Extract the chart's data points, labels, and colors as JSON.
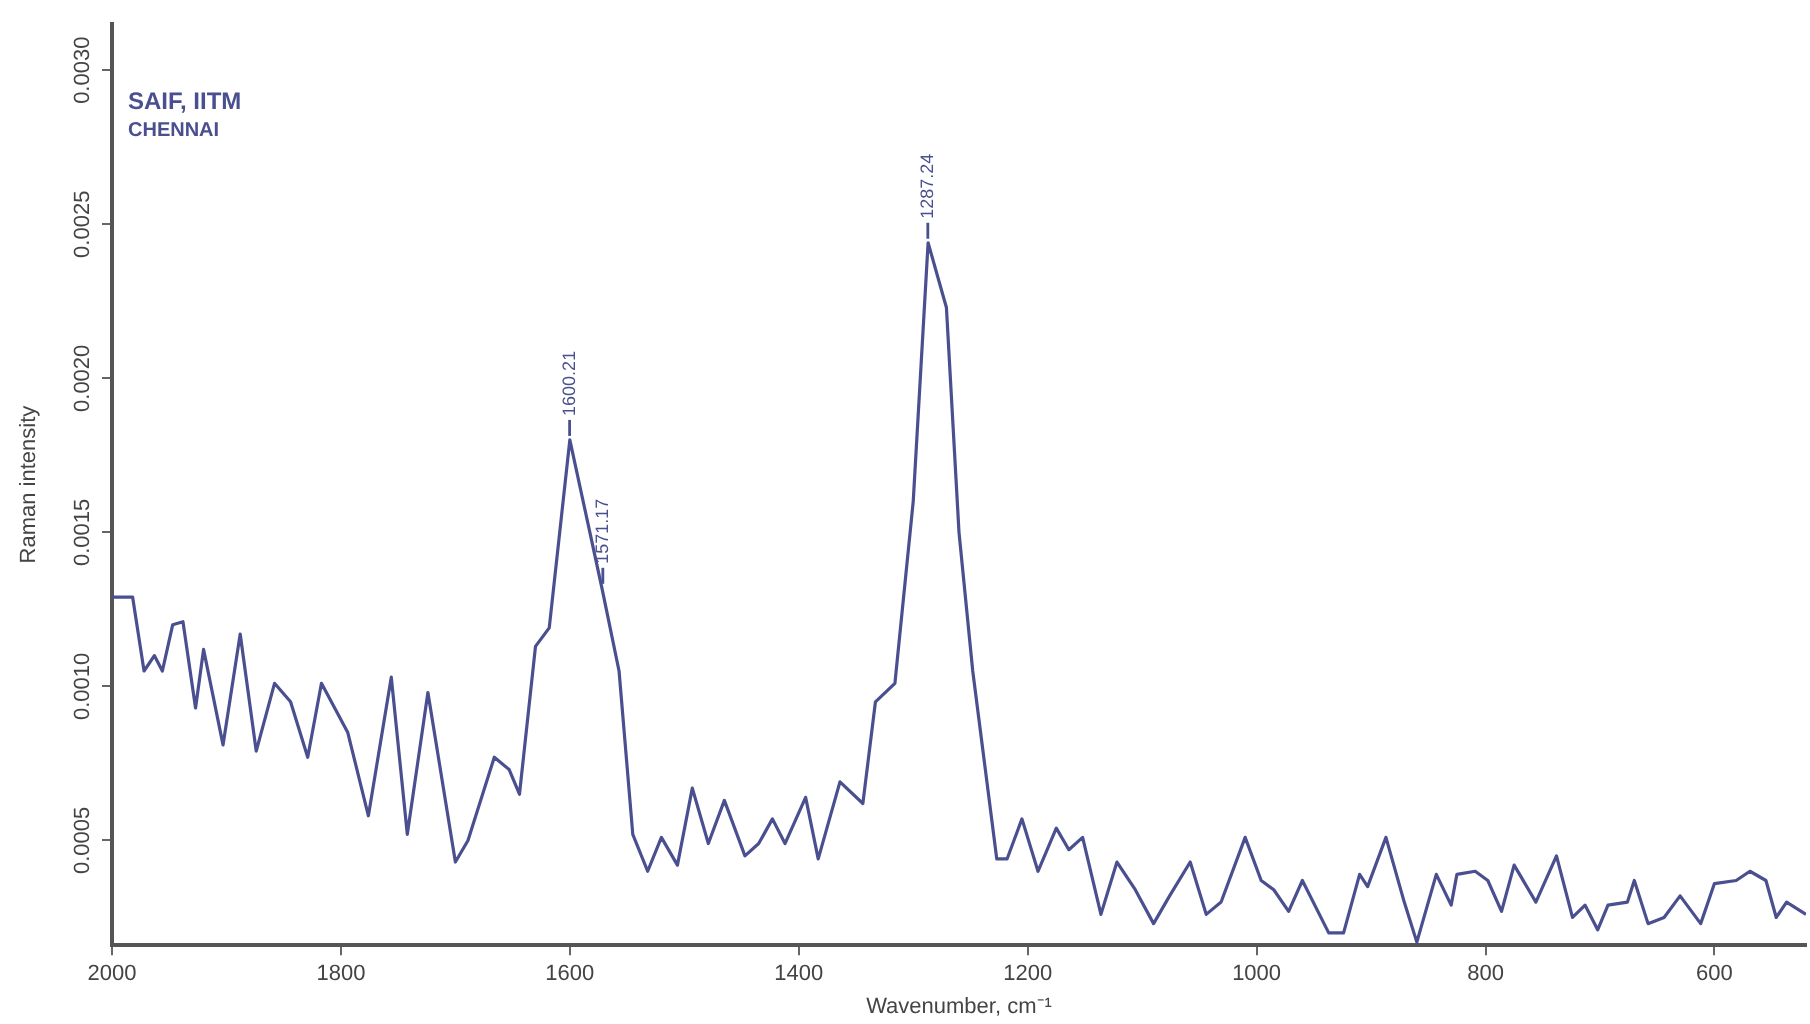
{
  "chart_data": {
    "type": "line",
    "xlabel": "Wavenumber, cm⁻¹",
    "ylabel": "Raman intensity",
    "x": [
      2000,
      1982,
      1972,
      1963,
      1956,
      1947,
      1938,
      1927,
      1920,
      1903,
      1888,
      1874,
      1858,
      1844,
      1829,
      1817,
      1794,
      1776,
      1756,
      1742,
      1724,
      1700,
      1689,
      1666,
      1653,
      1644,
      1630,
      1618,
      1600,
      1572,
      1557,
      1545,
      1532,
      1520,
      1506,
      1493,
      1479,
      1465,
      1447,
      1435,
      1423,
      1412,
      1394,
      1383,
      1364,
      1344,
      1333,
      1316,
      1300,
      1287,
      1271,
      1260,
      1248,
      1227,
      1218,
      1205,
      1191,
      1175,
      1164,
      1152,
      1136,
      1122,
      1106,
      1090,
      1076,
      1058,
      1044,
      1031,
      1010,
      996,
      985,
      972,
      960,
      937,
      924,
      910,
      903,
      887,
      871,
      860,
      843,
      830,
      825,
      809,
      798,
      786,
      775,
      756,
      738,
      724,
      713,
      702,
      693,
      676,
      670,
      658,
      644,
      630,
      612,
      600,
      581,
      569,
      555,
      546,
      537,
      520
    ],
    "series": [
      {
        "color": "#4a4f8f",
        "values": [
          0.00129,
          0.00129,
          0.00105,
          0.0011,
          0.00105,
          0.0012,
          0.00121,
          0.00093,
          0.00112,
          0.00081,
          0.00117,
          0.00079,
          0.00101,
          0.00095,
          0.00077,
          0.00101,
          0.00085,
          0.00058,
          0.00103,
          0.00052,
          0.00098,
          0.00043,
          0.0005,
          0.00077,
          0.00073,
          0.00065,
          0.00113,
          0.00119,
          0.0018,
          0.00132,
          0.00105,
          0.00052,
          0.0004,
          0.00051,
          0.00042,
          0.00067,
          0.00049,
          0.00063,
          0.00045,
          0.00049,
          0.00057,
          0.00049,
          0.00064,
          0.00044,
          0.00069,
          0.00062,
          0.00095,
          0.00101,
          0.0016,
          0.00244,
          0.00223,
          0.0015,
          0.00105,
          0.00044,
          0.00044,
          0.00057,
          0.0004,
          0.00054,
          0.00047,
          0.00051,
          0.00026,
          0.00043,
          0.00034,
          0.00023,
          0.00032,
          0.00043,
          0.00026,
          0.0003,
          0.00051,
          0.00037,
          0.00034,
          0.00027,
          0.00037,
          0.0002,
          0.0002,
          0.00039,
          0.00035,
          0.00051,
          0.0003,
          0.00017,
          0.00039,
          0.00029,
          0.00039,
          0.0004,
          0.00037,
          0.00027,
          0.00042,
          0.0003,
          0.00045,
          0.00025,
          0.00029,
          0.00021,
          0.00029,
          0.0003,
          0.00037,
          0.00023,
          0.00025,
          0.00032,
          0.00023,
          0.00036,
          0.00037,
          0.0004,
          0.00037,
          0.00025,
          0.0003,
          0.00026
        ]
      }
    ],
    "xlim": [
      2000,
      520
    ],
    "xticks": [
      2000,
      1800,
      1600,
      1400,
      1200,
      1000,
      800,
      600
    ],
    "ylim": [
      0.00016,
      0.00315
    ],
    "yticks": [
      {
        "value": 0.0005,
        "label": "0.0005"
      },
      {
        "value": 0.001,
        "label": "0.0010"
      },
      {
        "value": 0.0015,
        "label": "0.0015"
      },
      {
        "value": 0.002,
        "label": "0.0020"
      },
      {
        "value": 0.0025,
        "label": "0.0025"
      },
      {
        "value": 0.003,
        "label": "0.0030"
      }
    ],
    "grid": false,
    "legend": false,
    "annotations": [
      "SAIF, IITM",
      "CHENNAI",
      {
        "text": "1600.21",
        "x": 1600.21,
        "y": 0.0018
      },
      {
        "text": "1571.17",
        "x": 1571.17,
        "y": 0.00132
      },
      {
        "text": "1287.24",
        "x": 1287.24,
        "y": 0.00244
      }
    ]
  }
}
